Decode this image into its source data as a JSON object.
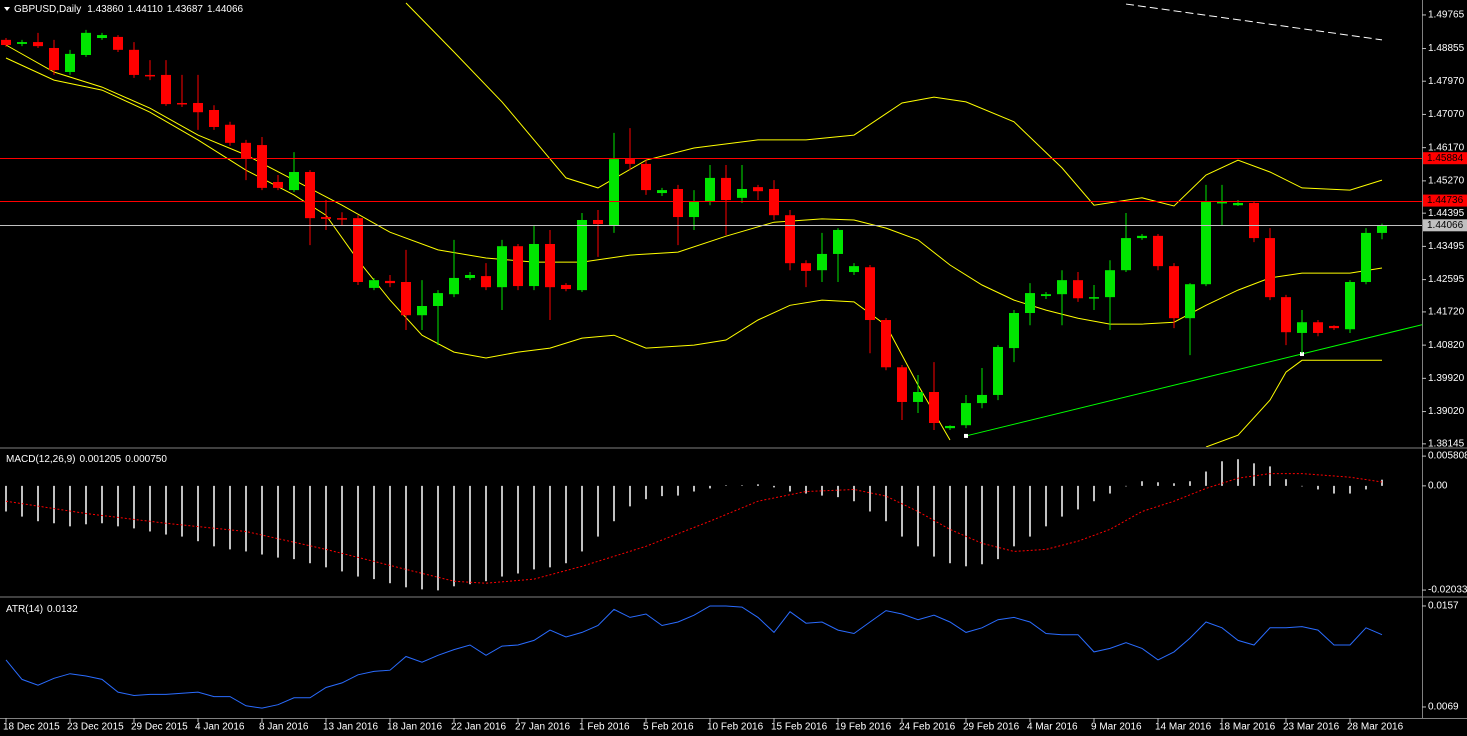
{
  "chart_data": [
    {
      "type": "candlestick",
      "title": "GBPUSD,Daily",
      "header_values": [
        "1.43860",
        "1.44110",
        "1.43687",
        "1.44066"
      ],
      "up_color": "#00e600",
      "down_color": "#ff0000",
      "open": [
        1.4909,
        1.4898,
        1.4903,
        1.4887,
        1.4822,
        1.4868,
        1.4914,
        1.4917,
        1.4882,
        1.4814,
        1.4814,
        1.4738,
        1.4738,
        1.4719,
        1.4679,
        1.463,
        1.4624,
        1.4524,
        1.4502,
        1.4551,
        1.4429,
        1.4426,
        1.4426,
        1.4237,
        1.4256,
        1.4253,
        1.4163,
        1.4188,
        1.422,
        1.4264,
        1.4269,
        1.4239,
        1.435,
        1.4242,
        1.4356,
        1.4245,
        1.4231,
        1.4421,
        1.4407,
        1.4586,
        1.4573,
        1.4494,
        1.4505,
        1.4429,
        1.447,
        1.4535,
        1.4481,
        1.451,
        1.4505,
        1.4434,
        1.4304,
        1.4285,
        1.4329,
        1.428,
        1.4293,
        1.415,
        1.4022,
        1.3928,
        1.3955,
        1.3857,
        1.3865,
        1.3925,
        1.3947,
        1.4074,
        1.4169,
        1.4215,
        1.422,
        1.4258,
        1.4209,
        1.4212,
        1.4285,
        1.4372,
        1.4378,
        1.4296,
        1.4155,
        1.4247,
        1.4467,
        1.4461,
        1.4467,
        1.4372,
        1.4212,
        1.4115,
        1.4144,
        1.4134,
        1.4125,
        1.4253,
        1.4386
      ],
      "high": [
        1.4914,
        1.4909,
        1.4928,
        1.4909,
        1.4882,
        1.4936,
        1.4928,
        1.4922,
        1.4903,
        1.4854,
        1.4854,
        1.4814,
        1.4814,
        1.4732,
        1.4687,
        1.4638,
        1.4646,
        1.4543,
        1.4605,
        1.4556,
        1.4475,
        1.4442,
        1.4434,
        1.4264,
        1.4272,
        1.434,
        1.4258,
        1.4231,
        1.4367,
        1.428,
        1.4304,
        1.4367,
        1.4356,
        1.4407,
        1.4394,
        1.425,
        1.444,
        1.4448,
        1.4657,
        1.467,
        1.4583,
        1.4508,
        1.4516,
        1.4502,
        1.457,
        1.457,
        1.457,
        1.4516,
        1.4529,
        1.4448,
        1.4312,
        1.4386,
        1.4399,
        1.4304,
        1.4299,
        1.4155,
        1.4028,
        1.4001,
        1.4036,
        1.3865,
        1.3947,
        1.402,
        1.4082,
        1.4177,
        1.425,
        1.4226,
        1.4285,
        1.428,
        1.4245,
        1.4312,
        1.444,
        1.4383,
        1.4383,
        1.4304,
        1.425,
        1.4516,
        1.4516,
        1.4475,
        1.447,
        1.4399,
        1.4218,
        1.4177,
        1.415,
        1.4136,
        1.4258,
        1.4399,
        1.4411
      ],
      "low": [
        1.489,
        1.4892,
        1.4887,
        1.4814,
        1.4814,
        1.4863,
        1.4909,
        1.4876,
        1.4806,
        1.48,
        1.473,
        1.4727,
        1.4665,
        1.4665,
        1.4622,
        1.4529,
        1.4502,
        1.4502,
        1.4497,
        1.4353,
        1.4394,
        1.4407,
        1.4245,
        1.4231,
        1.4239,
        1.4123,
        1.4123,
        1.4082,
        1.4212,
        1.4258,
        1.4231,
        1.4177,
        1.4231,
        1.4231,
        1.415,
        1.4228,
        1.4226,
        1.4321,
        1.4386,
        1.4556,
        1.4489,
        1.4486,
        1.4353,
        1.4394,
        1.4461,
        1.438,
        1.4467,
        1.4475,
        1.4421,
        1.4285,
        1.4239,
        1.4253,
        1.4253,
        1.4272,
        1.406,
        1.4014,
        1.3879,
        1.3898,
        1.3852,
        1.3852,
        1.3857,
        1.3911,
        1.3933,
        1.4036,
        1.4136,
        1.4207,
        1.4136,
        1.4199,
        1.4177,
        1.4123,
        1.428,
        1.4367,
        1.4285,
        1.4128,
        1.4055,
        1.4242,
        1.4407,
        1.4459,
        1.4361,
        1.4204,
        1.4082,
        1.406,
        1.4106,
        1.4123,
        1.4115,
        1.4247,
        1.43687
      ],
      "close": [
        1.4895,
        1.4903,
        1.4892,
        1.4827,
        1.4871,
        1.4928,
        1.4922,
        1.4882,
        1.4814,
        1.4811,
        1.4735,
        1.4735,
        1.4713,
        1.4673,
        1.463,
        1.4589,
        1.4508,
        1.4508,
        1.4551,
        1.4426,
        1.4424,
        1.4424,
        1.4253,
        1.4258,
        1.425,
        1.4163,
        1.4188,
        1.4223,
        1.4264,
        1.4272,
        1.4239,
        1.435,
        1.4242,
        1.4356,
        1.4239,
        1.4234,
        1.4421,
        1.441,
        1.4586,
        1.4573,
        1.4502,
        1.4502,
        1.4429,
        1.447,
        1.4535,
        1.4475,
        1.4505,
        1.4499,
        1.4434,
        1.4304,
        1.4283,
        1.4329,
        1.4394,
        1.4296,
        1.415,
        1.4022,
        1.3928,
        1.3955,
        1.3871,
        1.3863,
        1.3925,
        1.3947,
        1.4077,
        1.4169,
        1.4223,
        1.422,
        1.4258,
        1.4209,
        1.4212,
        1.4285,
        1.4372,
        1.4378,
        1.4296,
        1.4155,
        1.4247,
        1.4472,
        1.447,
        1.4467,
        1.4372,
        1.4212,
        1.4117,
        1.4144,
        1.4115,
        1.4128,
        1.4253,
        1.4386,
        1.44066
      ],
      "bands": [
        {
          "color": "#ffff00",
          "x": [
            25,
            28,
            31,
            35,
            37,
            40,
            43,
            47,
            50,
            53,
            56,
            58,
            60,
            63,
            66,
            68,
            71,
            73,
            75,
            77,
            79,
            81,
            84,
            86
          ],
          "values": [
            1.5009,
            1.4876,
            1.4741,
            1.4535,
            1.4508,
            1.4583,
            1.4616,
            1.4638,
            1.4638,
            1.4651,
            1.4738,
            1.4754,
            1.4741,
            1.4687,
            1.4562,
            1.4461,
            1.4481,
            1.4459,
            1.4543,
            1.4583,
            1.4551,
            1.4508,
            1.4502,
            1.4529
          ]
        },
        {
          "color": "#ffff00",
          "x": [
            0,
            3,
            6,
            9,
            12,
            15,
            18,
            21,
            24,
            27,
            30,
            33,
            36,
            39,
            42,
            45,
            48,
            51,
            53,
            55,
            57,
            59,
            61,
            63,
            65,
            67,
            69,
            71,
            73,
            75,
            77,
            79,
            81,
            84,
            86
          ],
          "values": [
            1.4895,
            1.4822,
            1.4781,
            1.4724,
            1.4651,
            1.4597,
            1.4529,
            1.4461,
            1.4388,
            1.434,
            1.4318,
            1.4307,
            1.4307,
            1.4326,
            1.4334,
            1.4377,
            1.4415,
            1.4424,
            1.4421,
            1.4399,
            1.4367,
            1.4299,
            1.4245,
            1.4204,
            1.4177,
            1.4155,
            1.4139,
            1.4139,
            1.4144,
            1.419,
            1.4231,
            1.4264,
            1.4277,
            1.4277,
            1.4291
          ]
        },
        {
          "color": "#ffff00",
          "x": [
            0,
            3,
            6,
            9,
            12,
            15,
            18,
            20,
            22,
            24,
            26,
            28,
            30,
            32,
            34,
            36,
            38,
            40,
            43,
            45,
            47,
            49,
            51,
            53,
            55,
            57,
            59,
            67,
            75,
            77,
            79,
            80,
            81,
            83,
            86
          ],
          "values": [
            1.486,
            1.48,
            1.4773,
            1.4713,
            1.4638,
            1.4556,
            1.4489,
            1.4434,
            1.4312,
            1.4204,
            1.4109,
            1.4063,
            1.4047,
            1.4063,
            1.4074,
            1.4101,
            1.4109,
            1.4074,
            1.4082,
            1.4096,
            1.415,
            1.419,
            1.4204,
            1.4199,
            1.4136,
            1.3974,
            1.3825,
            null,
            1.3806,
            1.3838,
            1.3933,
            1.4009,
            1.4041,
            1.4041,
            1.4041
          ]
        }
      ],
      "levels": [
        {
          "value": 1.45884,
          "color": "#ff0000"
        },
        {
          "value": 1.44736,
          "color": "#ff0000"
        },
        {
          "value": 1.44066,
          "color": "#c0c0c0"
        }
      ],
      "trendlines": [
        {
          "x": [
            60,
            81
          ],
          "values": [
            1.3836,
            1.4058
          ],
          "color": "#00ff00",
          "ray": true,
          "dashed": false
        },
        {
          "x": [
            70,
            86
          ],
          "values": [
            1.5006,
            1.4909
          ],
          "color": "#ffffff",
          "ray": false,
          "dashed": true
        }
      ],
      "ylim": [
        1.3806,
        1.5017
      ],
      "yticks": [
        1.49765,
        1.48855,
        {
          "value": 1.4797,
          "label": "1.47970"
        },
        {
          "value": 1.4707,
          "label": "1.47070"
        },
        {
          "value": 1.4617,
          "label": "1.46170"
        },
        {
          "value": 1.4527,
          "label": "1.45270"
        },
        1.44395,
        1.43495,
        1.42595,
        {
          "value": 1.4172,
          "label": "1.41720"
        },
        {
          "value": 1.4082,
          "label": "1.40820"
        },
        {
          "value": 1.3992,
          "label": "1.39920"
        },
        {
          "value": 1.3902,
          "label": "1.39020"
        },
        1.38145
      ],
      "xticks": [
        {
          "value": 0,
          "label": "18 Dec 2015"
        },
        {
          "value": 4,
          "label": "23 Dec 2015"
        },
        {
          "value": 8,
          "label": "29 Dec 2015"
        },
        {
          "value": 12,
          "label": "4 Jan 2016"
        },
        {
          "value": 16,
          "label": "8 Jan 2016"
        },
        {
          "value": 20,
          "label": "13 Jan 2016"
        },
        {
          "value": 24,
          "label": "18 Jan 2016"
        },
        {
          "value": 28,
          "label": "22 Jan 2016"
        },
        {
          "value": 32,
          "label": "27 Jan 2016"
        },
        {
          "value": 36,
          "label": "1 Feb 2016"
        },
        {
          "value": 40,
          "label": "5 Feb 2016"
        },
        {
          "value": 44,
          "label": "10 Feb 2016"
        },
        {
          "value": 48,
          "label": "15 Feb 2016"
        },
        {
          "value": 52,
          "label": "19 Feb 2016"
        },
        {
          "value": 56,
          "label": "24 Feb 2016"
        },
        {
          "value": 60,
          "label": "29 Feb 2016"
        },
        {
          "value": 64,
          "label": "4 Mar 2016"
        },
        {
          "value": 68,
          "label": "9 Mar 2016"
        },
        {
          "value": 72,
          "label": "14 Mar 2016"
        },
        {
          "value": 76,
          "label": "18 Mar 2016"
        },
        {
          "value": 80,
          "label": "23 Mar 2016"
        },
        {
          "value": 84,
          "label": "28 Mar 2016"
        }
      ]
    },
    {
      "type": "macd",
      "title": "MACD(12,26,9)",
      "header_values": [
        "0.001205",
        "0.000750"
      ],
      "color": "#c0c0c0",
      "signal_color": "#ff0000",
      "values": [
        -0.005,
        -0.006,
        -0.0069,
        -0.0073,
        -0.0079,
        -0.0075,
        -0.0073,
        -0.0079,
        -0.0083,
        -0.0089,
        -0.0095,
        -0.0099,
        -0.0108,
        -0.0118,
        -0.0124,
        -0.0128,
        -0.0134,
        -0.014,
        -0.0143,
        -0.0151,
        -0.0159,
        -0.0167,
        -0.0177,
        -0.0182,
        -0.019,
        -0.0198,
        -0.0202,
        -0.0204,
        -0.0196,
        -0.0192,
        -0.0186,
        -0.0177,
        -0.0171,
        -0.0163,
        -0.0159,
        -0.0151,
        -0.0128,
        -0.0099,
        -0.0069,
        -0.004,
        -0.0026,
        -0.002,
        -0.0019,
        -0.0011,
        -0.0005,
        0.0001,
        0.0001,
        0.0003,
        -0.0003,
        -0.0011,
        -0.0015,
        -0.0019,
        -0.0022,
        -0.003,
        -0.005,
        -0.0069,
        -0.0099,
        -0.0118,
        -0.0138,
        -0.0151,
        -0.0157,
        -0.0153,
        -0.0143,
        -0.0118,
        -0.0099,
        -0.0079,
        -0.006,
        -0.0046,
        -0.003,
        -0.0015,
        -0.0001,
        0.0009,
        0.0007,
        0.0005,
        0.0009,
        0.0028,
        0.0048,
        0.0052,
        0.0044,
        0.0038,
        0.0013,
        -0.0001,
        -0.0007,
        -0.0015,
        -0.0015,
        -0.0007,
        0.001205
      ],
      "signal": {
        "x": [
          0,
          5,
          10,
          15,
          20,
          25,
          28,
          30,
          33,
          36,
          40,
          44,
          47,
          50,
          53,
          55,
          57,
          59,
          61,
          63,
          65,
          67,
          69,
          71,
          73,
          75,
          77,
          79,
          81,
          84,
          86
        ],
        "values": [
          -0.003,
          -0.0054,
          -0.0073,
          -0.0089,
          -0.0124,
          -0.0163,
          -0.0186,
          -0.019,
          -0.0182,
          -0.0157,
          -0.0118,
          -0.0069,
          -0.003,
          -0.0011,
          -0.0007,
          -0.002,
          -0.005,
          -0.0085,
          -0.0112,
          -0.0128,
          -0.0124,
          -0.0108,
          -0.0085,
          -0.005,
          -0.003,
          -0.0005,
          0.0015,
          0.0024,
          0.0024,
          0.0017,
          0.00075
        ]
      },
      "ylim": [
        -0.0213,
        0.007
      ],
      "yticks": [
        0.005808,
        {
          "value": 0,
          "label": "0.00"
        },
        -0.020339
      ]
    },
    {
      "type": "line",
      "title": "ATR(14)",
      "header_values": [
        "0.0132"
      ],
      "color": "#2a6cff",
      "values": [
        0.011,
        0.0093,
        0.0088,
        0.0094,
        0.0098,
        0.0096,
        0.0093,
        0.0082,
        0.0079,
        0.008,
        0.008,
        0.0081,
        0.0082,
        0.0078,
        0.0078,
        0.007,
        0.0068,
        0.0071,
        0.0077,
        0.0077,
        0.0086,
        0.009,
        0.0097,
        0.01,
        0.0101,
        0.0113,
        0.0108,
        0.0114,
        0.0119,
        0.0123,
        0.0114,
        0.0122,
        0.0123,
        0.0127,
        0.0136,
        0.013,
        0.0134,
        0.014,
        0.0154,
        0.0147,
        0.015,
        0.014,
        0.0143,
        0.0149,
        0.0157,
        0.0157,
        0.0156,
        0.0147,
        0.0134,
        0.0152,
        0.0142,
        0.0143,
        0.0136,
        0.0133,
        0.0143,
        0.0153,
        0.015,
        0.0145,
        0.0149,
        0.0143,
        0.0134,
        0.0138,
        0.0145,
        0.0147,
        0.0143,
        0.0133,
        0.0132,
        0.0132,
        0.0117,
        0.012,
        0.0125,
        0.012,
        0.011,
        0.0117,
        0.0129,
        0.0143,
        0.0138,
        0.0127,
        0.0123,
        0.0138,
        0.0138,
        0.0139,
        0.0136,
        0.0123,
        0.0123,
        0.0138,
        0.0132
      ],
      "ylim": [
        0.00594,
        0.01622
      ],
      "yticks": [
        0.0157,
        0.0069
      ]
    }
  ]
}
